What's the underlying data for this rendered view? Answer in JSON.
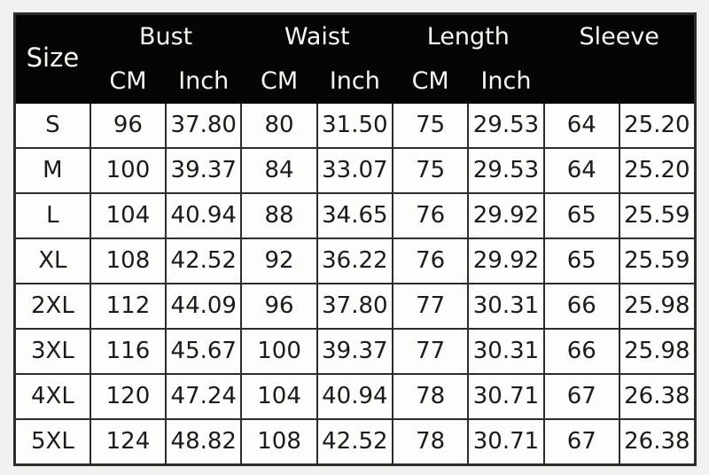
{
  "chart_data": {
    "type": "table",
    "size_column_header": "Size",
    "group_headers": [
      "Bust",
      "Waist",
      "Length",
      "Sleeve"
    ],
    "unit_headers": [
      "CM",
      "Inch",
      "CM",
      "Inch",
      "CM",
      "Inch",
      "",
      ""
    ],
    "rows": [
      {
        "size": "S",
        "values": [
          "96",
          "37.80",
          "80",
          "31.50",
          "75",
          "29.53",
          "64",
          "25.20"
        ]
      },
      {
        "size": "M",
        "values": [
          "100",
          "39.37",
          "84",
          "33.07",
          "75",
          "29.53",
          "64",
          "25.20"
        ]
      },
      {
        "size": "L",
        "values": [
          "104",
          "40.94",
          "88",
          "34.65",
          "76",
          "29.92",
          "65",
          "25.59"
        ]
      },
      {
        "size": "XL",
        "values": [
          "108",
          "42.52",
          "92",
          "36.22",
          "76",
          "29.92",
          "65",
          "25.59"
        ]
      },
      {
        "size": "2XL",
        "values": [
          "112",
          "44.09",
          "96",
          "37.80",
          "77",
          "30.31",
          "66",
          "25.98"
        ]
      },
      {
        "size": "3XL",
        "values": [
          "116",
          "45.67",
          "100",
          "39.37",
          "77",
          "30.31",
          "66",
          "25.98"
        ]
      },
      {
        "size": "4XL",
        "values": [
          "120",
          "47.24",
          "104",
          "40.94",
          "78",
          "30.71",
          "67",
          "26.38"
        ]
      },
      {
        "size": "5XL",
        "values": [
          "124",
          "48.82",
          "108",
          "42.52",
          "78",
          "30.71",
          "67",
          "26.38"
        ]
      }
    ],
    "layout_hints": {
      "grid": "on",
      "header_rows": 2,
      "body_rows": 8,
      "columns": 9
    },
    "colors": {
      "page_bg": "#f2f1ef",
      "header_bg": "#050505",
      "header_text": "#f7f6f3",
      "cell_bg": "#fdfdfc",
      "cell_text": "#1b1b1b",
      "border": "#2c2c2c"
    }
  }
}
